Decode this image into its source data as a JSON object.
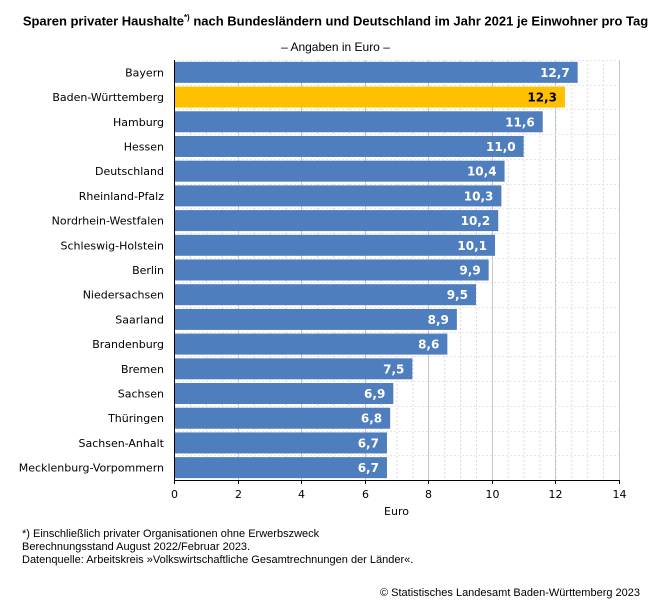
{
  "title_main": "Sparen privater Haushalte",
  "title_sup": "*)",
  "title_rest": " nach Bundesländern und Deutschland im Jahr 2021 je Einwohner pro Tag",
  "subtitle": "– Angaben in Euro –",
  "footnotes": {
    "note1": "*) Einschließlich privater Organisationen ohne Erwerbszweck",
    "note2": "Berechnungsstand August 2022/Februar 2023.",
    "note3": "Datenquelle: Arbeitskreis »Volkswirtschaftliche Gesamtrechnungen der Länder«."
  },
  "copyright": "© Statistisches Landesamt Baden-Württemberg 2023",
  "chart_data": {
    "type": "bar",
    "orientation": "horizontal",
    "title": "Sparen privater Haushalte*) nach Bundesländern und Deutschland im Jahr 2021 je Einwohner pro Tag",
    "subtitle": "– Angaben in Euro –",
    "categories": [
      "Bayern",
      "Baden-Württemberg",
      "Hamburg",
      "Hessen",
      "Deutschland",
      "Rheinland-Pfalz",
      "Nordrhein-Westfalen",
      "Schleswig-Holstein",
      "Berlin",
      "Niedersachsen",
      "Saarland",
      "Brandenburg",
      "Bremen",
      "Sachsen",
      "Thüringen",
      "Sachsen-Anhalt",
      "Mecklenburg-Vorpommern"
    ],
    "values": [
      12.7,
      12.3,
      11.6,
      11.0,
      10.4,
      10.3,
      10.2,
      10.1,
      9.9,
      9.5,
      8.9,
      8.6,
      7.5,
      6.9,
      6.8,
      6.7,
      6.7
    ],
    "labels": [
      "12,7",
      "12,3",
      "11,6",
      "11,0",
      "10,4",
      "10,3",
      "10,2",
      "10,1",
      "9,9",
      "9,5",
      "8,9",
      "8,6",
      "7,5",
      "6,9",
      "6,8",
      "6,7",
      "6,7"
    ],
    "highlight": "Baden-Württemberg",
    "xlabel": "Euro",
    "ylabel": "",
    "xlim": [
      0,
      14
    ],
    "xticks": [
      0,
      2,
      4,
      6,
      8,
      10,
      12,
      14
    ],
    "grid": true,
    "colors": {
      "bar": "#4f7ebf",
      "highlight": "#ffc000",
      "grid": "#d9d9d9"
    }
  }
}
